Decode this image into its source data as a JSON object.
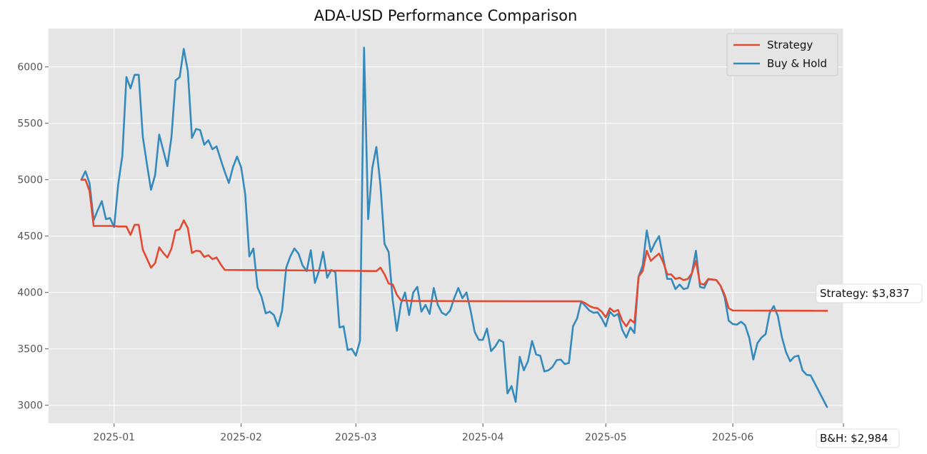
{
  "chart_data": {
    "type": "line",
    "title": "ADA-USD Performance Comparison",
    "xlabel": "",
    "ylabel": "",
    "x_range": [
      "2024-12-16",
      "2025-06-28"
    ],
    "ylim": [
      2840,
      6340
    ],
    "x_ticks": [
      "2025-01-01",
      "2025-02-01",
      "2025-03-01",
      "2025-04-01",
      "2025-05-01",
      "2025-06-01"
    ],
    "x_tick_labels": [
      "2025-01",
      "2025-02",
      "2025-03",
      "2025-04",
      "2025-05",
      "2025-06"
    ],
    "y_ticks": [
      3000,
      3500,
      4000,
      4500,
      5000,
      5500,
      6000
    ],
    "y_tick_labels": [
      "3000",
      "3500",
      "4000",
      "4500",
      "5000",
      "5500",
      "6000"
    ],
    "grid": true,
    "legend_position": "top-right",
    "series": [
      {
        "name": "Strategy",
        "color": "#E24A33",
        "points": [
          [
            "2024-12-24",
            5000
          ],
          [
            "2024-12-25",
            5000
          ],
          [
            "2024-12-26",
            4900
          ],
          [
            "2024-12-27",
            4590
          ],
          [
            "2024-12-28",
            4590
          ],
          [
            "2024-12-29",
            4590
          ],
          [
            "2024-12-30",
            4590
          ],
          [
            "2024-12-31",
            4590
          ],
          [
            "2025-01-01",
            4590
          ],
          [
            "2025-01-02",
            4585
          ],
          [
            "2025-01-03",
            4585
          ],
          [
            "2025-01-04",
            4585
          ],
          [
            "2025-01-05",
            4510
          ],
          [
            "2025-01-06",
            4600
          ],
          [
            "2025-01-07",
            4600
          ],
          [
            "2025-01-08",
            4380
          ],
          [
            "2025-01-09",
            4300
          ],
          [
            "2025-01-10",
            4220
          ],
          [
            "2025-01-11",
            4260
          ],
          [
            "2025-01-12",
            4400
          ],
          [
            "2025-01-13",
            4350
          ],
          [
            "2025-01-14",
            4310
          ],
          [
            "2025-01-15",
            4390
          ],
          [
            "2025-01-16",
            4550
          ],
          [
            "2025-01-17",
            4560
          ],
          [
            "2025-01-18",
            4640
          ],
          [
            "2025-01-19",
            4570
          ],
          [
            "2025-01-20",
            4350
          ],
          [
            "2025-01-21",
            4370
          ],
          [
            "2025-01-22",
            4365
          ],
          [
            "2025-01-23",
            4315
          ],
          [
            "2025-01-24",
            4330
          ],
          [
            "2025-01-25",
            4295
          ],
          [
            "2025-01-26",
            4310
          ],
          [
            "2025-01-27",
            4250
          ],
          [
            "2025-01-28",
            4200
          ],
          [
            "2025-02-01",
            4199
          ],
          [
            "2025-02-15",
            4196
          ],
          [
            "2025-03-01",
            4192
          ],
          [
            "2025-03-05",
            4190
          ],
          [
            "2025-03-06",
            4190
          ],
          [
            "2025-03-07",
            4220
          ],
          [
            "2025-03-08",
            4160
          ],
          [
            "2025-03-09",
            4080
          ],
          [
            "2025-03-10",
            4070
          ],
          [
            "2025-03-11",
            3980
          ],
          [
            "2025-03-12",
            3930
          ],
          [
            "2025-03-15",
            3925
          ],
          [
            "2025-04-01",
            3923
          ],
          [
            "2025-04-15",
            3922
          ],
          [
            "2025-04-25",
            3922
          ],
          [
            "2025-04-26",
            3905
          ],
          [
            "2025-04-27",
            3880
          ],
          [
            "2025-04-28",
            3865
          ],
          [
            "2025-04-29",
            3860
          ],
          [
            "2025-04-30",
            3830
          ],
          [
            "2025-05-01",
            3780
          ],
          [
            "2025-05-02",
            3860
          ],
          [
            "2025-05-03",
            3830
          ],
          [
            "2025-05-04",
            3845
          ],
          [
            "2025-05-05",
            3750
          ],
          [
            "2025-05-06",
            3700
          ],
          [
            "2025-05-07",
            3760
          ],
          [
            "2025-05-08",
            3730
          ],
          [
            "2025-05-09",
            4140
          ],
          [
            "2025-05-10",
            4190
          ],
          [
            "2025-05-11",
            4370
          ],
          [
            "2025-05-12",
            4280
          ],
          [
            "2025-05-13",
            4315
          ],
          [
            "2025-05-14",
            4345
          ],
          [
            "2025-05-15",
            4270
          ],
          [
            "2025-05-16",
            4160
          ],
          [
            "2025-05-17",
            4160
          ],
          [
            "2025-05-18",
            4120
          ],
          [
            "2025-05-19",
            4130
          ],
          [
            "2025-05-20",
            4110
          ],
          [
            "2025-05-21",
            4120
          ],
          [
            "2025-05-22",
            4170
          ],
          [
            "2025-05-23",
            4280
          ],
          [
            "2025-05-24",
            4080
          ],
          [
            "2025-05-25",
            4070
          ],
          [
            "2025-05-26",
            4120
          ],
          [
            "2025-05-27",
            4115
          ],
          [
            "2025-05-28",
            4110
          ],
          [
            "2025-05-29",
            4060
          ],
          [
            "2025-05-30",
            3980
          ],
          [
            "2025-05-31",
            3860
          ],
          [
            "2025-06-01",
            3840
          ],
          [
            "2025-06-10",
            3839
          ],
          [
            "2025-06-20",
            3838
          ],
          [
            "2025-06-24",
            3837
          ]
        ]
      },
      {
        "name": "Buy & Hold",
        "color": "#348ABD",
        "points": [
          [
            "2024-12-24",
            5000
          ],
          [
            "2024-12-25",
            5075
          ],
          [
            "2024-12-26",
            4970
          ],
          [
            "2024-12-27",
            4640
          ],
          [
            "2024-12-28",
            4730
          ],
          [
            "2024-12-29",
            4810
          ],
          [
            "2024-12-30",
            4650
          ],
          [
            "2024-12-31",
            4660
          ],
          [
            "2025-01-01",
            4580
          ],
          [
            "2025-01-02",
            4960
          ],
          [
            "2025-01-03",
            5210
          ],
          [
            "2025-01-04",
            5910
          ],
          [
            "2025-01-05",
            5810
          ],
          [
            "2025-01-06",
            5930
          ],
          [
            "2025-01-07",
            5930
          ],
          [
            "2025-01-08",
            5380
          ],
          [
            "2025-01-09",
            5140
          ],
          [
            "2025-01-10",
            4910
          ],
          [
            "2025-01-11",
            5040
          ],
          [
            "2025-01-12",
            5400
          ],
          [
            "2025-01-13",
            5260
          ],
          [
            "2025-01-14",
            5120
          ],
          [
            "2025-01-15",
            5380
          ],
          [
            "2025-01-16",
            5880
          ],
          [
            "2025-01-17",
            5910
          ],
          [
            "2025-01-18",
            6160
          ],
          [
            "2025-01-19",
            5960
          ],
          [
            "2025-01-20",
            5370
          ],
          [
            "2025-01-21",
            5450
          ],
          [
            "2025-01-22",
            5440
          ],
          [
            "2025-01-23",
            5310
          ],
          [
            "2025-01-24",
            5350
          ],
          [
            "2025-01-25",
            5270
          ],
          [
            "2025-01-26",
            5295
          ],
          [
            "2025-01-27",
            5180
          ],
          [
            "2025-01-28",
            5070
          ],
          [
            "2025-01-29",
            4970
          ],
          [
            "2025-01-30",
            5110
          ],
          [
            "2025-01-31",
            5205
          ],
          [
            "2025-02-01",
            5110
          ],
          [
            "2025-02-02",
            4870
          ],
          [
            "2025-02-03",
            4320
          ],
          [
            "2025-02-04",
            4390
          ],
          [
            "2025-02-05",
            4045
          ],
          [
            "2025-02-06",
            3960
          ],
          [
            "2025-02-07",
            3815
          ],
          [
            "2025-02-08",
            3830
          ],
          [
            "2025-02-09",
            3800
          ],
          [
            "2025-02-10",
            3700
          ],
          [
            "2025-02-11",
            3840
          ],
          [
            "2025-02-12",
            4220
          ],
          [
            "2025-02-13",
            4320
          ],
          [
            "2025-02-14",
            4390
          ],
          [
            "2025-02-15",
            4345
          ],
          [
            "2025-02-16",
            4240
          ],
          [
            "2025-02-17",
            4190
          ],
          [
            "2025-02-18",
            4375
          ],
          [
            "2025-02-19",
            4085
          ],
          [
            "2025-02-20",
            4190
          ],
          [
            "2025-02-21",
            4360
          ],
          [
            "2025-02-22",
            4130
          ],
          [
            "2025-02-23",
            4200
          ],
          [
            "2025-02-24",
            4180
          ],
          [
            "2025-02-25",
            3690
          ],
          [
            "2025-02-26",
            3700
          ],
          [
            "2025-02-27",
            3490
          ],
          [
            "2025-02-28",
            3500
          ],
          [
            "2025-03-01",
            3440
          ],
          [
            "2025-03-02",
            3570
          ],
          [
            "2025-03-03",
            6170
          ],
          [
            "2025-03-04",
            4650
          ],
          [
            "2025-03-05",
            5100
          ],
          [
            "2025-03-06",
            5290
          ],
          [
            "2025-03-07",
            4950
          ],
          [
            "2025-03-08",
            4430
          ],
          [
            "2025-03-09",
            4360
          ],
          [
            "2025-03-10",
            3930
          ],
          [
            "2025-03-11",
            3660
          ],
          [
            "2025-03-12",
            3900
          ],
          [
            "2025-03-13",
            4000
          ],
          [
            "2025-03-14",
            3800
          ],
          [
            "2025-03-15",
            4000
          ],
          [
            "2025-03-16",
            4050
          ],
          [
            "2025-03-17",
            3830
          ],
          [
            "2025-03-18",
            3890
          ],
          [
            "2025-03-19",
            3810
          ],
          [
            "2025-03-20",
            4040
          ],
          [
            "2025-03-21",
            3890
          ],
          [
            "2025-03-22",
            3820
          ],
          [
            "2025-03-23",
            3800
          ],
          [
            "2025-03-24",
            3840
          ],
          [
            "2025-03-25",
            3950
          ],
          [
            "2025-03-26",
            4040
          ],
          [
            "2025-03-27",
            3950
          ],
          [
            "2025-03-28",
            4000
          ],
          [
            "2025-03-29",
            3840
          ],
          [
            "2025-03-30",
            3650
          ],
          [
            "2025-03-31",
            3580
          ],
          [
            "2025-04-01",
            3580
          ],
          [
            "2025-04-02",
            3680
          ],
          [
            "2025-04-03",
            3480
          ],
          [
            "2025-04-04",
            3520
          ],
          [
            "2025-04-05",
            3580
          ],
          [
            "2025-04-06",
            3560
          ],
          [
            "2025-04-07",
            3105
          ],
          [
            "2025-04-08",
            3170
          ],
          [
            "2025-04-09",
            3030
          ],
          [
            "2025-04-10",
            3430
          ],
          [
            "2025-04-11",
            3310
          ],
          [
            "2025-04-12",
            3390
          ],
          [
            "2025-04-13",
            3570
          ],
          [
            "2025-04-14",
            3450
          ],
          [
            "2025-04-15",
            3440
          ],
          [
            "2025-04-16",
            3300
          ],
          [
            "2025-04-17",
            3310
          ],
          [
            "2025-04-18",
            3340
          ],
          [
            "2025-04-19",
            3400
          ],
          [
            "2025-04-20",
            3405
          ],
          [
            "2025-04-21",
            3365
          ],
          [
            "2025-04-22",
            3375
          ],
          [
            "2025-04-23",
            3700
          ],
          [
            "2025-04-24",
            3770
          ],
          [
            "2025-04-25",
            3920
          ],
          [
            "2025-04-26",
            3880
          ],
          [
            "2025-04-27",
            3840
          ],
          [
            "2025-04-28",
            3820
          ],
          [
            "2025-04-29",
            3825
          ],
          [
            "2025-04-30",
            3770
          ],
          [
            "2025-05-01",
            3700
          ],
          [
            "2025-05-02",
            3830
          ],
          [
            "2025-05-03",
            3790
          ],
          [
            "2025-05-04",
            3810
          ],
          [
            "2025-05-05",
            3670
          ],
          [
            "2025-05-06",
            3600
          ],
          [
            "2025-05-07",
            3690
          ],
          [
            "2025-05-08",
            3640
          ],
          [
            "2025-05-09",
            4140
          ],
          [
            "2025-05-10",
            4240
          ],
          [
            "2025-05-11",
            4550
          ],
          [
            "2025-05-12",
            4360
          ],
          [
            "2025-05-13",
            4440
          ],
          [
            "2025-05-14",
            4500
          ],
          [
            "2025-05-15",
            4310
          ],
          [
            "2025-05-16",
            4120
          ],
          [
            "2025-05-17",
            4120
          ],
          [
            "2025-05-18",
            4030
          ],
          [
            "2025-05-19",
            4070
          ],
          [
            "2025-05-20",
            4030
          ],
          [
            "2025-05-21",
            4040
          ],
          [
            "2025-05-22",
            4170
          ],
          [
            "2025-05-23",
            4370
          ],
          [
            "2025-05-24",
            4050
          ],
          [
            "2025-05-25",
            4040
          ],
          [
            "2025-05-26",
            4115
          ],
          [
            "2025-05-27",
            4115
          ],
          [
            "2025-05-28",
            4110
          ],
          [
            "2025-05-29",
            4060
          ],
          [
            "2025-05-30",
            3960
          ],
          [
            "2025-05-31",
            3750
          ],
          [
            "2025-06-01",
            3720
          ],
          [
            "2025-06-02",
            3715
          ],
          [
            "2025-06-03",
            3740
          ],
          [
            "2025-06-04",
            3710
          ],
          [
            "2025-06-05",
            3600
          ],
          [
            "2025-06-06",
            3405
          ],
          [
            "2025-06-07",
            3550
          ],
          [
            "2025-06-08",
            3600
          ],
          [
            "2025-06-09",
            3630
          ],
          [
            "2025-06-10",
            3820
          ],
          [
            "2025-06-11",
            3880
          ],
          [
            "2025-06-12",
            3790
          ],
          [
            "2025-06-13",
            3600
          ],
          [
            "2025-06-14",
            3470
          ],
          [
            "2025-06-15",
            3390
          ],
          [
            "2025-06-16",
            3430
          ],
          [
            "2025-06-17",
            3440
          ],
          [
            "2025-06-18",
            3310
          ],
          [
            "2025-06-19",
            3270
          ],
          [
            "2025-06-20",
            3265
          ],
          [
            "2025-06-24",
            2984
          ]
        ]
      }
    ],
    "annotations": [
      {
        "text": "Strategy: $3,837",
        "series": "Strategy"
      },
      {
        "text": "B&H: $2,984",
        "series": "Buy & Hold"
      }
    ]
  }
}
